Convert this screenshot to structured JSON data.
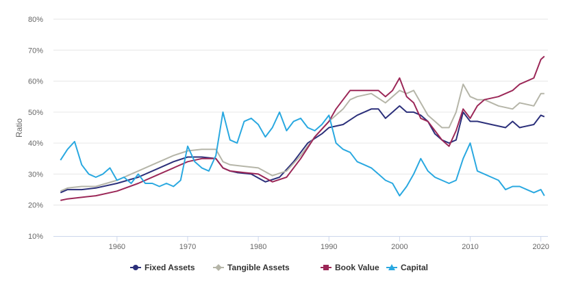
{
  "chart_data": {
    "type": "line",
    "title": "",
    "xlabel": "",
    "ylabel": "Ratio",
    "xlim": [
      1951,
      2021
    ],
    "ylim": [
      10,
      80
    ],
    "x_ticks": [
      1960,
      1970,
      1980,
      1990,
      2000,
      2010,
      2020
    ],
    "x_tick_labels": [
      "1960",
      "1970",
      "1980",
      "1990",
      "2000",
      "2010",
      "2020"
    ],
    "y_ticks": [
      10,
      20,
      30,
      40,
      50,
      60,
      70,
      80
    ],
    "y_tick_labels": [
      "10%",
      "20%",
      "30%",
      "40%",
      "50%",
      "60%",
      "70%",
      "80%"
    ],
    "grid": true,
    "legend_position": "bottom",
    "series": [
      {
        "name": "Fixed Assets",
        "color": "#2b2f7a",
        "marker": "circle",
        "x": [
          1952,
          1953,
          1955,
          1957,
          1960,
          1963,
          1966,
          1968,
          1970,
          1972,
          1974,
          1975,
          1976,
          1977,
          1979,
          1981,
          1983,
          1985,
          1987,
          1989,
          1990,
          1992,
          1994,
          1996,
          1997,
          1998,
          1999,
          2000,
          2001,
          2002,
          2003,
          2004,
          2005,
          2006,
          2007,
          2008,
          2009,
          2010,
          2011,
          2013,
          2015,
          2016,
          2017,
          2019,
          2020,
          2020.5
        ],
        "y": [
          24,
          25,
          25,
          25.5,
          27,
          29,
          32,
          34,
          35.5,
          35.5,
          35,
          32,
          31,
          30.5,
          30,
          27.5,
          29,
          34,
          40,
          43,
          45,
          46,
          49,
          51,
          51,
          48,
          50,
          52,
          50,
          50,
          49,
          47,
          43,
          41,
          40,
          41,
          50,
          47,
          47,
          46,
          45,
          47,
          45,
          46,
          49,
          48.5
        ]
      },
      {
        "name": "Tangible Assets",
        "color": "#b5b5a8",
        "marker": "diamond",
        "x": [
          1952,
          1953,
          1955,
          1957,
          1960,
          1963,
          1966,
          1968,
          1970,
          1972,
          1974,
          1975,
          1976,
          1978,
          1980,
          1982,
          1984,
          1986,
          1988,
          1990,
          1992,
          1993,
          1994,
          1996,
          1998,
          2000,
          2001,
          2002,
          2003,
          2004,
          2005,
          2006,
          2007,
          2008,
          2009,
          2010,
          2011,
          2012,
          2014,
          2016,
          2017,
          2019,
          2020,
          2020.5
        ],
        "y": [
          24.5,
          25.5,
          26,
          26,
          28,
          31,
          34,
          36,
          37.5,
          38,
          38,
          34,
          33,
          32.5,
          32,
          29.5,
          31,
          36,
          42,
          47,
          51,
          54,
          55,
          56,
          53,
          57,
          56,
          57,
          53,
          49,
          47,
          45,
          45,
          50,
          59,
          55,
          54,
          54,
          52,
          51,
          53,
          52,
          56,
          56
        ]
      },
      {
        "name": "Book Value",
        "color": "#9b2757",
        "marker": "square",
        "x": [
          1952,
          1953,
          1955,
          1957,
          1960,
          1963,
          1966,
          1968,
          1970,
          1972,
          1974,
          1975,
          1976,
          1978,
          1980,
          1982,
          1984,
          1986,
          1988,
          1990,
          1991,
          1992,
          1993,
          1995,
          1997,
          1998,
          1999,
          2000,
          2001,
          2002,
          2003,
          2004,
          2005,
          2006,
          2007,
          2008,
          2009,
          2010,
          2011,
          2012,
          2014,
          2016,
          2017,
          2018,
          2019,
          2020,
          2020.5
        ],
        "y": [
          21.5,
          22,
          22.5,
          23,
          24.5,
          27,
          30,
          32,
          34,
          35,
          35,
          32,
          31,
          30.5,
          30,
          27.5,
          29,
          35,
          42,
          47,
          51,
          54,
          57,
          57,
          57,
          55,
          57,
          61,
          55,
          53,
          48,
          47,
          44,
          41,
          39,
          44,
          51,
          48,
          52,
          54,
          55,
          57,
          59,
          60,
          61,
          67,
          68
        ]
      },
      {
        "name": "Capital",
        "color": "#29a8e0",
        "marker": "triangle",
        "x": [
          1952,
          1953,
          1954,
          1955,
          1956,
          1957,
          1958,
          1959,
          1960,
          1961,
          1962,
          1963,
          1964,
          1965,
          1966,
          1967,
          1968,
          1969,
          1970,
          1971,
          1972,
          1973,
          1974,
          1975,
          1976,
          1977,
          1978,
          1979,
          1980,
          1981,
          1982,
          1983,
          1984,
          1985,
          1986,
          1987,
          1988,
          1989,
          1990,
          1991,
          1992,
          1993,
          1994,
          1995,
          1996,
          1997,
          1998,
          1999,
          2000,
          2001,
          2002,
          2003,
          2004,
          2005,
          2006,
          2007,
          2008,
          2009,
          2010,
          2011,
          2012,
          2013,
          2014,
          2015,
          2016,
          2017,
          2018,
          2019,
          2020,
          2020.5
        ],
        "y": [
          34.5,
          38,
          40.5,
          33,
          30,
          29,
          30,
          32,
          28,
          29,
          27,
          30,
          27,
          27,
          26,
          27,
          26,
          28,
          39,
          34,
          32,
          31,
          36,
          50,
          41,
          40,
          47,
          48,
          46,
          42,
          45,
          50,
          44,
          47,
          48,
          45,
          44,
          46,
          49,
          40,
          38,
          37,
          34,
          33,
          32,
          30,
          28,
          27,
          23,
          26,
          30,
          35,
          31,
          29,
          28,
          27,
          28,
          35,
          40,
          31,
          30,
          29,
          28,
          25,
          26,
          26,
          25,
          24,
          25,
          23
        ]
      }
    ]
  }
}
